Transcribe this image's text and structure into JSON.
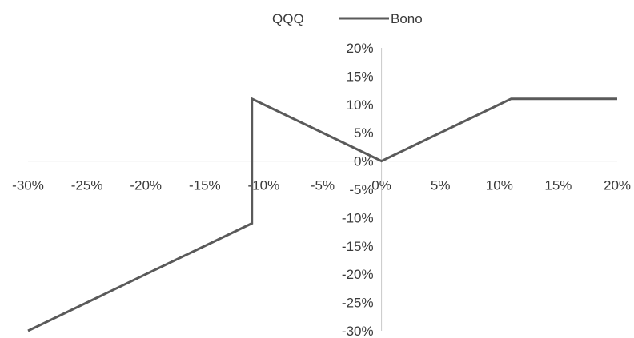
{
  "chart_data": {
    "type": "line",
    "x_tick_labels": [
      "-30%",
      "-25%",
      "-20%",
      "-15%",
      "-10%",
      "-5%",
      "0%",
      "5%",
      "10%",
      "15%",
      "20%"
    ],
    "y_tick_labels": [
      "-30%",
      "-25%",
      "-20%",
      "-15%",
      "-10%",
      "-5%",
      "0%",
      "5%",
      "10%",
      "15%",
      "20%"
    ],
    "xlim": [
      -0.3,
      0.2
    ],
    "ylim": [
      -0.3,
      0.2
    ],
    "legend_position": "top",
    "grid": false,
    "series": [
      {
        "name": "QQQ",
        "color": "#e07020",
        "style": "markers",
        "x": [],
        "y": []
      },
      {
        "name": "Bono",
        "color": "#5a5a5a",
        "style": "line",
        "x": [
          -0.3,
          -0.11,
          -0.11,
          -0.01,
          0.0,
          0.01,
          0.11,
          0.2
        ],
        "y": [
          -0.3,
          -0.11,
          0.11,
          0.01,
          0.0,
          0.01,
          0.11,
          0.11
        ]
      }
    ]
  }
}
